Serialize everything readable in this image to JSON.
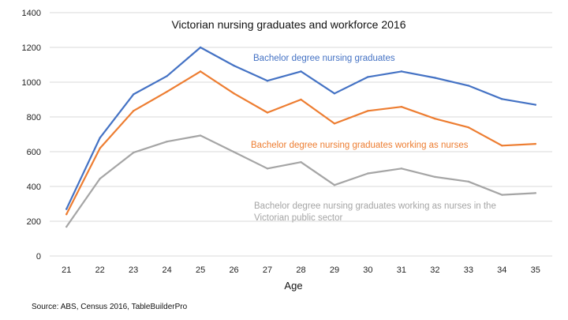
{
  "chart_data": {
    "type": "line",
    "title": "Victorian nursing graduates and workforce 2016",
    "xlabel": "Age",
    "ylabel": "",
    "x": [
      21,
      22,
      23,
      24,
      25,
      26,
      27,
      28,
      29,
      30,
      31,
      32,
      33,
      34,
      35
    ],
    "ylim": [
      0,
      1400
    ],
    "yticks": [
      0,
      200,
      400,
      600,
      800,
      1000,
      1200,
      1400
    ],
    "grid": true,
    "series": [
      {
        "name": "Bachelor degree nursing graduates",
        "label_lines": [
          "Bachelor degree nursing graduates"
        ],
        "color": "#4472c4",
        "values": [
          270,
          680,
          930,
          1035,
          1200,
          1095,
          1008,
          1062,
          935,
          1030,
          1062,
          1025,
          980,
          903,
          870
        ]
      },
      {
        "name": "Bachelor degree nursing graduates working as nurses",
        "label_lines": [
          "Bachelor degree nursing graduates working as nurses"
        ],
        "color": "#ed7d31",
        "values": [
          240,
          620,
          835,
          945,
          1062,
          935,
          825,
          900,
          762,
          835,
          858,
          790,
          740,
          635,
          645
        ]
      },
      {
        "name": "Bachelor degree nursing graduates working as nurses in the Victorian public sector",
        "label_lines": [
          "Bachelor degree nursing graduates working as nurses in the",
          "Victorian public sector"
        ],
        "color": "#a5a5a5",
        "values": [
          168,
          445,
          595,
          658,
          693,
          598,
          503,
          540,
          408,
          475,
          503,
          455,
          428,
          352,
          362
        ]
      }
    ],
    "source": "Source: ABS, Census 2016, TableBuilderPro"
  }
}
